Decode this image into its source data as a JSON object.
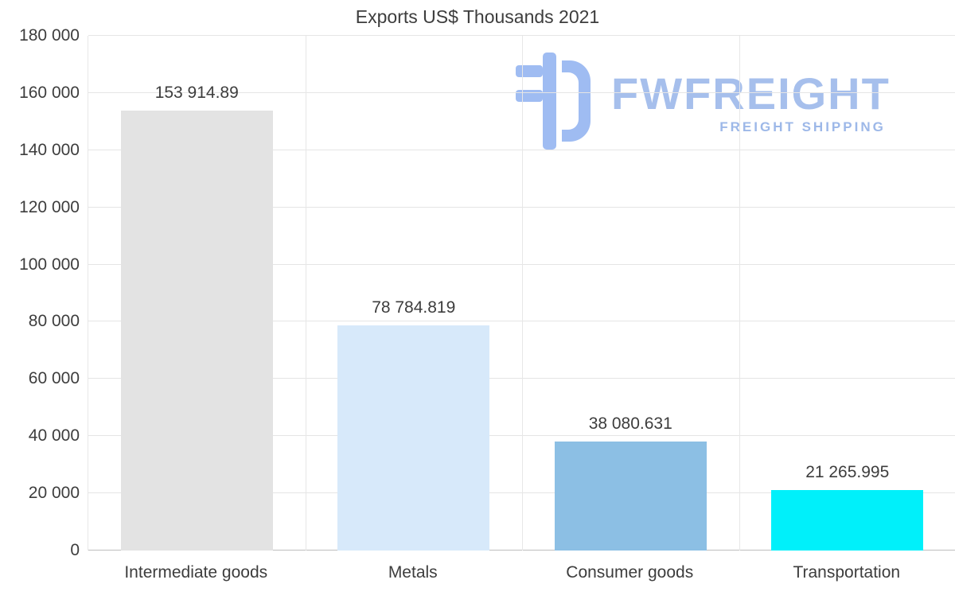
{
  "title": "Exports US$ Thousands 2021",
  "watermark": {
    "brand": "FWFREIGHT",
    "tagline": "FREIGHT SHIPPING"
  },
  "colors": {
    "logo_icon": "#9fbcf2",
    "brand_text": "#a6bfec",
    "tagline_text": "#9db8e8",
    "text": "#3d3d3d",
    "gridline": "#e5e5e5",
    "axis_line": "#bdbdbd"
  },
  "chart_data": {
    "type": "bar",
    "title": "Exports US$ Thousands 2021",
    "categories": [
      "Intermediate goods",
      "Metals",
      "Consumer goods",
      "Transportation"
    ],
    "values": [
      153914.89,
      78784.819,
      38080.631,
      21265.995
    ],
    "value_labels": [
      "153 914.89",
      "78 784.819",
      "38 080.631",
      "21 265.995"
    ],
    "bar_colors": [
      "#e3e3e3",
      "#d7e9fa",
      "#8cbfe4",
      "#00f0fa"
    ],
    "xlabel": "",
    "ylabel": "",
    "ylim": [
      0,
      180000
    ],
    "ytick_step": 20000,
    "ytick_labels": [
      "0",
      "20 000",
      "40 000",
      "60 000",
      "80 000",
      "100 000",
      "120 000",
      "140 000",
      "160 000",
      "180 000"
    ],
    "grid": true,
    "legend": "none"
  }
}
